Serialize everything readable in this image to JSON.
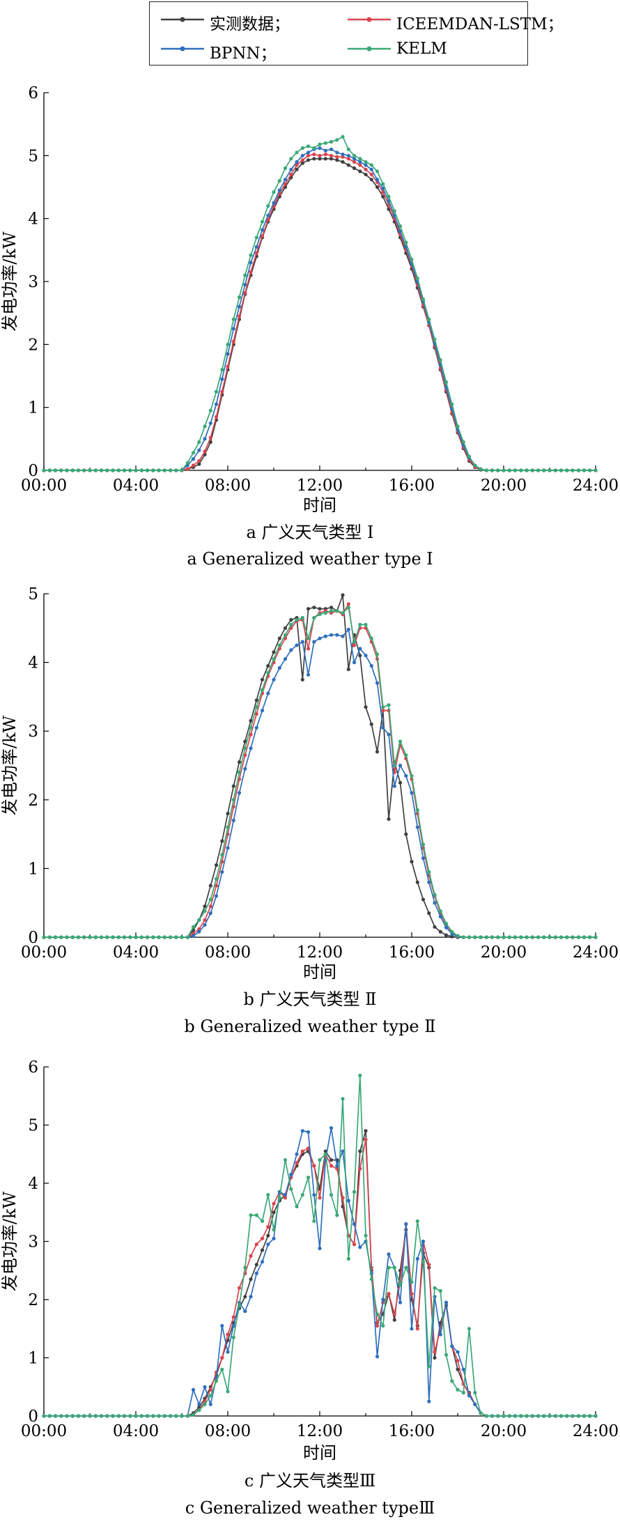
{
  "legend": [
    {
      "name": "实测数据；",
      "color": "#404040"
    },
    {
      "name": "ICEEMDAN-LSTM；",
      "color": "#d9444e"
    },
    {
      "name": "BPNN；",
      "color": "#2f6fbd"
    },
    {
      "name": "KELM",
      "color": "#3aa876"
    }
  ],
  "chart_data": [
    {
      "type": "line",
      "caption_cn": "a  广义天气类型 Ⅰ",
      "caption_en": "a  Generalized weather type Ⅰ",
      "xlabel": "时间",
      "ylabel": "发电功率/kW",
      "x_ticks": [
        "00:00",
        "04:00",
        "08:00",
        "12:00",
        "16:00",
        "20:00",
        "24:00"
      ],
      "ylim": [
        0,
        6
      ],
      "y_ticks": [
        0,
        1,
        2,
        3,
        4,
        5,
        6
      ],
      "x_hours": [
        6.25,
        6.5,
        6.75,
        7,
        7.25,
        7.5,
        7.75,
        8,
        8.25,
        8.5,
        8.75,
        9,
        9.25,
        9.5,
        9.75,
        10,
        10.25,
        10.5,
        10.75,
        11,
        11.25,
        11.5,
        11.75,
        12,
        12.25,
        12.5,
        12.75,
        13,
        13.25,
        13.5,
        13.75,
        14,
        14.25,
        14.5,
        14.75,
        15,
        15.25,
        15.5,
        15.75,
        16,
        16.25,
        16.5,
        16.75,
        17,
        17.25,
        17.5,
        17.75,
        18,
        18.25,
        18.5,
        18.75,
        19,
        19.25,
        19.5
      ],
      "series": [
        {
          "name": "实测数据",
          "color": "#404040",
          "values": [
            0.02,
            0.05,
            0.1,
            0.25,
            0.45,
            0.8,
            1.2,
            1.6,
            2.0,
            2.4,
            2.8,
            3.1,
            3.4,
            3.7,
            3.95,
            4.15,
            4.35,
            4.5,
            4.65,
            4.78,
            4.88,
            4.93,
            4.95,
            4.95,
            4.95,
            4.95,
            4.93,
            4.9,
            4.85,
            4.8,
            4.75,
            4.7,
            4.62,
            4.5,
            4.35,
            4.15,
            3.95,
            3.7,
            3.45,
            3.2,
            2.9,
            2.6,
            2.3,
            1.95,
            1.6,
            1.25,
            0.9,
            0.6,
            0.35,
            0.15,
            0.05,
            0.01,
            0,
            0
          ]
        },
        {
          "name": "ICEEMDAN-LSTM",
          "color": "#d9444e",
          "values": [
            0.02,
            0.08,
            0.15,
            0.3,
            0.52,
            0.85,
            1.25,
            1.65,
            2.05,
            2.45,
            2.82,
            3.15,
            3.45,
            3.72,
            3.98,
            4.2,
            4.4,
            4.55,
            4.7,
            4.85,
            4.93,
            5.0,
            5.02,
            5.0,
            5.02,
            5.0,
            4.98,
            4.98,
            4.95,
            4.9,
            4.85,
            4.78,
            4.7,
            4.58,
            4.42,
            4.22,
            4.0,
            3.75,
            3.5,
            3.25,
            2.95,
            2.62,
            2.3,
            1.98,
            1.62,
            1.28,
            0.92,
            0.62,
            0.37,
            0.17,
            0.06,
            0.02,
            0,
            0
          ]
        },
        {
          "name": "BPNN",
          "color": "#2f6fbd",
          "values": [
            0.08,
            0.18,
            0.32,
            0.5,
            0.75,
            1.05,
            1.45,
            1.85,
            2.25,
            2.6,
            2.95,
            3.3,
            3.55,
            3.82,
            4.05,
            4.25,
            4.45,
            4.62,
            4.78,
            4.9,
            5.0,
            5.05,
            5.1,
            5.12,
            5.08,
            5.1,
            5.05,
            5.02,
            5.0,
            4.95,
            4.9,
            4.85,
            4.78,
            4.62,
            4.48,
            4.28,
            4.05,
            3.8,
            3.55,
            3.28,
            3.0,
            2.68,
            2.35,
            2.02,
            1.68,
            1.32,
            0.98,
            0.65,
            0.4,
            0.2,
            0.08,
            0.02,
            0,
            0
          ]
        },
        {
          "name": "KELM",
          "color": "#3aa876",
          "values": [
            0.12,
            0.28,
            0.45,
            0.7,
            0.95,
            1.25,
            1.6,
            2.0,
            2.4,
            2.75,
            3.1,
            3.42,
            3.7,
            3.95,
            4.2,
            4.42,
            4.6,
            4.8,
            4.95,
            5.05,
            5.12,
            5.15,
            5.12,
            5.18,
            5.2,
            5.22,
            5.25,
            5.3,
            5.1,
            5.0,
            4.95,
            4.9,
            4.85,
            4.75,
            4.55,
            4.35,
            4.12,
            3.88,
            3.62,
            3.35,
            3.05,
            2.72,
            2.4,
            2.08,
            1.75,
            1.4,
            1.05,
            0.7,
            0.45,
            0.22,
            0.08,
            0.02,
            0,
            0
          ]
        }
      ]
    },
    {
      "type": "line",
      "caption_cn": "b  广义天气类型 Ⅱ",
      "caption_en": "b  Generalized weather type Ⅱ",
      "xlabel": "时间",
      "ylabel": "发电功率/kW",
      "x_ticks": [
        "00:00",
        "04:00",
        "08:00",
        "12:00",
        "16:00",
        "20:00",
        "24:00"
      ],
      "ylim": [
        0,
        5
      ],
      "y_ticks": [
        0,
        1,
        2,
        3,
        4,
        5
      ],
      "x_hours": [
        6.5,
        6.75,
        7,
        7.25,
        7.5,
        7.75,
        8,
        8.25,
        8.5,
        8.75,
        9,
        9.25,
        9.5,
        9.75,
        10,
        10.25,
        10.5,
        10.75,
        11,
        11.25,
        11.5,
        11.75,
        12,
        12.25,
        12.5,
        12.75,
        13,
        13.25,
        13.5,
        13.75,
        14,
        14.25,
        14.5,
        14.75,
        15,
        15.25,
        15.5,
        15.75,
        16,
        16.25,
        16.5,
        16.75,
        17,
        17.25,
        17.5,
        17.75,
        18,
        18.25,
        18.5
      ],
      "series": [
        {
          "name": "实测数据",
          "color": "#404040",
          "values": [
            0.1,
            0.25,
            0.45,
            0.75,
            1.05,
            1.4,
            1.8,
            2.2,
            2.55,
            2.85,
            3.15,
            3.45,
            3.75,
            3.95,
            4.15,
            4.35,
            4.5,
            4.62,
            4.65,
            3.75,
            4.78,
            4.8,
            4.78,
            4.78,
            4.8,
            4.75,
            4.98,
            3.9,
            4.4,
            4.1,
            3.35,
            3.1,
            2.7,
            3.3,
            1.72,
            2.55,
            2.25,
            1.5,
            1.1,
            0.8,
            0.55,
            0.35,
            0.15,
            0.08,
            0.03,
            0.01,
            0,
            0,
            0
          ]
        },
        {
          "name": "ICEEMDAN-LSTM",
          "color": "#d9444e",
          "values": [
            0.05,
            0.12,
            0.25,
            0.45,
            0.75,
            1.1,
            1.5,
            1.9,
            2.3,
            2.65,
            2.95,
            3.25,
            3.55,
            3.8,
            4.0,
            4.2,
            4.35,
            4.5,
            4.6,
            4.62,
            4.2,
            4.65,
            4.72,
            4.75,
            4.72,
            4.75,
            4.7,
            4.85,
            4.25,
            4.5,
            4.5,
            4.3,
            4.05,
            3.3,
            3.3,
            2.4,
            2.8,
            2.6,
            2.3,
            1.8,
            1.3,
            0.9,
            0.6,
            0.35,
            0.18,
            0.07,
            0.02,
            0,
            0
          ]
        },
        {
          "name": "BPNN",
          "color": "#2f6fbd",
          "values": [
            0.02,
            0.08,
            0.18,
            0.35,
            0.6,
            0.95,
            1.3,
            1.7,
            2.1,
            2.45,
            2.75,
            3.05,
            3.3,
            3.55,
            3.75,
            3.92,
            4.05,
            4.18,
            4.25,
            4.3,
            3.82,
            4.3,
            4.35,
            4.38,
            4.4,
            4.4,
            4.38,
            4.48,
            4.0,
            4.2,
            4.1,
            3.95,
            3.7,
            3.05,
            2.95,
            2.2,
            2.5,
            2.35,
            2.1,
            1.6,
            1.15,
            0.8,
            0.5,
            0.3,
            0.14,
            0.05,
            0.01,
            0,
            0
          ]
        },
        {
          "name": "KELM",
          "color": "#3aa876",
          "values": [
            0.15,
            0.25,
            0.38,
            0.55,
            0.85,
            1.2,
            1.6,
            2.0,
            2.4,
            2.75,
            3.05,
            3.35,
            3.6,
            3.85,
            4.05,
            4.25,
            4.4,
            4.55,
            4.62,
            4.65,
            4.35,
            4.65,
            4.7,
            4.72,
            4.75,
            4.75,
            4.72,
            4.8,
            4.3,
            4.55,
            4.55,
            4.35,
            4.12,
            3.35,
            3.38,
            2.5,
            2.85,
            2.65,
            2.35,
            1.85,
            1.35,
            0.95,
            0.62,
            0.38,
            0.2,
            0.08,
            0.02,
            0,
            0
          ]
        }
      ]
    },
    {
      "type": "line",
      "caption_cn": "c  广义天气类型Ⅲ",
      "caption_en": "c  Generalized weather typeⅢ",
      "xlabel": "时间",
      "ylabel": "发电功率/kW",
      "x_ticks": [
        "00:00",
        "04:00",
        "08:00",
        "12:00",
        "16:00",
        "20:00",
        "24:00"
      ],
      "ylim": [
        0,
        6
      ],
      "y_ticks": [
        0,
        1,
        2,
        3,
        4,
        5,
        6
      ],
      "x_hours": [
        6.5,
        6.75,
        7,
        7.25,
        7.5,
        7.75,
        8,
        8.25,
        8.5,
        8.75,
        9,
        9.25,
        9.5,
        9.75,
        10,
        10.25,
        10.5,
        10.75,
        11,
        11.25,
        11.5,
        11.75,
        12,
        12.25,
        12.5,
        12.75,
        13,
        13.25,
        13.5,
        13.75,
        14,
        14.25,
        14.5,
        14.75,
        15,
        15.25,
        15.5,
        15.75,
        16,
        16.25,
        16.5,
        16.75,
        17,
        17.25,
        17.5,
        17.75,
        18,
        18.25,
        18.5,
        18.75,
        19,
        19.25
      ],
      "series": [
        {
          "name": "实测数据",
          "color": "#404040",
          "values": [
            0.05,
            0.15,
            0.3,
            0.5,
            0.7,
            1.0,
            1.3,
            1.6,
            1.85,
            2.05,
            2.35,
            2.6,
            2.85,
            3.1,
            3.5,
            3.7,
            3.8,
            4.1,
            4.3,
            4.5,
            4.55,
            4.3,
            3.9,
            4.55,
            4.4,
            4.4,
            3.6,
            3.1,
            2.95,
            4.55,
            4.9,
            2.5,
            1.6,
            1.75,
            2.1,
            1.65,
            2.5,
            3.2,
            2.0,
            1.55,
            2.8,
            2.55,
            1.0,
            1.6,
            1.9,
            1.2,
            0.8,
            0.55,
            0.4,
            0.2,
            0.05,
            0
          ]
        },
        {
          "name": "ICEEMDAN-LSTM",
          "color": "#d9444e",
          "values": [
            0.02,
            0.1,
            0.25,
            0.45,
            0.75,
            1.0,
            1.4,
            1.7,
            2.2,
            2.45,
            2.75,
            2.95,
            3.05,
            3.25,
            3.65,
            3.85,
            3.75,
            4.1,
            4.35,
            4.55,
            4.6,
            4.3,
            3.75,
            4.5,
            4.3,
            4.25,
            3.75,
            3.1,
            2.95,
            4.25,
            4.75,
            2.55,
            1.55,
            1.95,
            2.1,
            1.75,
            2.3,
            3.3,
            2.1,
            1.5,
            3.0,
            2.6,
            1.1,
            1.5,
            1.95,
            1.2,
            0.95,
            0.55,
            0.38,
            0.2,
            0.05,
            0
          ]
        },
        {
          "name": "BPNN",
          "color": "#2f6fbd",
          "values": [
            0.45,
            0.2,
            0.5,
            0.2,
            0.65,
            1.55,
            1.1,
            1.55,
            1.95,
            1.8,
            2.05,
            2.45,
            2.65,
            2.95,
            3.05,
            3.85,
            3.8,
            4.15,
            4.5,
            4.9,
            4.88,
            3.8,
            2.88,
            4.4,
            4.95,
            4.3,
            4.55,
            3.7,
            3.3,
            2.9,
            3.0,
            2.45,
            1.02,
            2.0,
            2.78,
            2.55,
            1.95,
            3.3,
            1.5,
            2.7,
            3.0,
            0.25,
            2.05,
            1.4,
            1.95,
            1.2,
            1.1,
            0.8,
            0.35,
            0.2,
            0.05,
            0
          ]
        },
        {
          "name": "KELM",
          "color": "#3aa876",
          "values": [
            0.02,
            0.1,
            0.2,
            0.35,
            0.6,
            0.8,
            0.42,
            1.35,
            1.9,
            2.55,
            3.45,
            3.45,
            3.35,
            3.8,
            3.2,
            3.75,
            4.4,
            3.9,
            3.6,
            3.8,
            4.1,
            3.35,
            4.4,
            4.5,
            3.8,
            3.45,
            5.45,
            2.7,
            3.85,
            5.85,
            3.1,
            2.35,
            1.75,
            1.55,
            2.55,
            2.55,
            2.25,
            2.55,
            2.3,
            3.35,
            2.65,
            0.85,
            2.2,
            2.15,
            1.05,
            0.6,
            0.45,
            0.4,
            1.5,
            0.4,
            0.05,
            0
          ]
        }
      ]
    }
  ]
}
